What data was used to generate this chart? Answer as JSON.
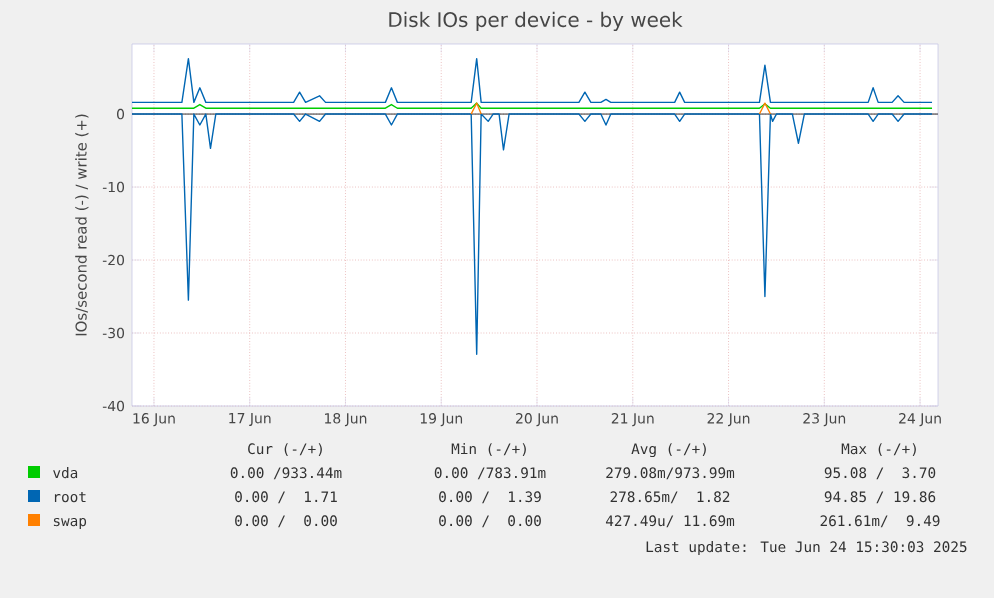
{
  "chart_data": {
    "type": "line",
    "title": "Disk IOs per device - by week",
    "ylabel": "IOs/second read (-) / write (+)",
    "xlim": [
      "2025-06-15T18:30",
      "2025-06-24T04:30"
    ],
    "ylim": [
      -40,
      9.6
    ],
    "xticks": [
      {
        "value": "2025-06-16",
        "label": "16 Jun"
      },
      {
        "value": "2025-06-17",
        "label": "17 Jun"
      },
      {
        "value": "2025-06-18",
        "label": "18 Jun"
      },
      {
        "value": "2025-06-19",
        "label": "19 Jun"
      },
      {
        "value": "2025-06-20",
        "label": "20 Jun"
      },
      {
        "value": "2025-06-21",
        "label": "21 Jun"
      },
      {
        "value": "2025-06-22",
        "label": "22 Jun"
      },
      {
        "value": "2025-06-23",
        "label": "23 Jun"
      },
      {
        "value": "2025-06-24",
        "label": "24 Jun"
      }
    ],
    "yticks": [
      -40,
      -30,
      -20,
      -10,
      0
    ],
    "grid": true,
    "legend": "bottom",
    "line_style": "solid",
    "marker": "none",
    "ref_lines": [
      {
        "axis": "y",
        "value": 0,
        "color": "#000000"
      }
    ],
    "series": [
      {
        "name": "vda",
        "color": "#00cc00",
        "x": [
          "2025-06-15T18:30",
          "2025-06-16T10:00",
          "2025-06-16T11:30",
          "2025-06-16T13:00",
          "2025-06-18T10:00",
          "2025-06-18T11:31",
          "2025-06-18T13:00",
          "2025-06-19T07:30",
          "2025-06-19T08:53",
          "2025-06-19T10:00",
          "2025-06-22T07:45",
          "2025-06-22T09:07",
          "2025-06-22T10:30",
          "2025-06-24T03:00"
        ],
        "values": [
          0.8,
          0.8,
          1.3,
          0.8,
          0.8,
          1.3,
          0.8,
          0.8,
          1.5,
          0.8,
          0.8,
          1.4,
          0.8,
          0.8
        ]
      },
      {
        "name": "root",
        "color": "#0066b3",
        "x": [
          "2025-06-15T18:30",
          "2025-06-16T07:00",
          "2025-06-16T08:38",
          "2025-06-16T10:00",
          "2025-06-16T11:30",
          "2025-06-16T13:00",
          "2025-06-17T11:00",
          "2025-06-17T12:30",
          "2025-06-17T14:00",
          "2025-06-17T17:30",
          "2025-06-17T19:00",
          "2025-06-18T10:00",
          "2025-06-18T11:31",
          "2025-06-18T13:00",
          "2025-06-19T07:30",
          "2025-06-19T08:53",
          "2025-06-19T10:00",
          "2025-06-20T10:30",
          "2025-06-20T12:00",
          "2025-06-20T13:30",
          "2025-06-20T16:00",
          "2025-06-20T17:17",
          "2025-06-20T18:30",
          "2025-06-21T10:30",
          "2025-06-21T11:45",
          "2025-06-21T13:00",
          "2025-06-22T07:45",
          "2025-06-22T09:07",
          "2025-06-22T10:30",
          "2025-06-23T11:00",
          "2025-06-23T12:14",
          "2025-06-23T13:30",
          "2025-06-23T17:00",
          "2025-06-23T18:29",
          "2025-06-23T20:00",
          "2025-06-24T03:00"
        ],
        "values": [
          1.6,
          1.6,
          7.6,
          1.6,
          3.6,
          1.6,
          1.6,
          3.0,
          1.6,
          2.5,
          1.6,
          1.6,
          3.6,
          1.6,
          1.6,
          7.6,
          1.6,
          1.6,
          3.0,
          1.6,
          1.6,
          2.0,
          1.6,
          1.6,
          3.0,
          1.6,
          1.6,
          6.7,
          1.6,
          1.6,
          3.6,
          1.6,
          1.6,
          2.5,
          1.6,
          1.6
        ]
      },
      {
        "color": "#0066b3",
        "x": [
          "2025-06-15T18:30",
          "2025-06-16T07:00",
          "2025-06-16T08:38",
          "2025-06-16T10:00",
          "2025-06-16T11:30",
          "2025-06-16T13:00",
          "2025-06-16T14:10",
          "2025-06-16T15:30",
          "2025-06-17T11:00",
          "2025-06-17T12:30",
          "2025-06-17T14:00",
          "2025-06-17T17:30",
          "2025-06-17T19:00",
          "2025-06-18T10:00",
          "2025-06-18T11:31",
          "2025-06-18T13:00",
          "2025-06-19T07:30",
          "2025-06-19T08:53",
          "2025-06-19T10:00",
          "2025-06-19T11:46",
          "2025-06-19T13:00",
          "2025-06-19T14:30",
          "2025-06-19T15:36",
          "2025-06-19T17:00",
          "2025-06-20T10:30",
          "2025-06-20T12:00",
          "2025-06-20T13:30",
          "2025-06-20T16:00",
          "2025-06-20T17:17",
          "2025-06-20T18:30",
          "2025-06-21T10:30",
          "2025-06-21T11:45",
          "2025-06-21T13:00",
          "2025-06-22T07:45",
          "2025-06-22T09:07",
          "2025-06-22T10:30",
          "2025-06-22T11:02",
          "2025-06-22T12:00",
          "2025-06-22T16:00",
          "2025-06-22T17:31",
          "2025-06-22T19:00",
          "2025-06-23T11:00",
          "2025-06-23T12:14",
          "2025-06-23T13:30",
          "2025-06-23T17:00",
          "2025-06-23T18:29",
          "2025-06-23T20:00",
          "2025-06-24T03:00"
        ],
        "values": [
          0,
          0,
          -25.5,
          0,
          -1.5,
          0,
          -4.7,
          0,
          0,
          -1,
          0,
          -1,
          0,
          0,
          -1.5,
          0,
          0,
          -32.9,
          0,
          -1,
          0,
          0,
          -4.9,
          0,
          0,
          -1,
          0,
          0,
          -1.5,
          0,
          0,
          -1,
          0,
          0,
          -25,
          0,
          -1,
          0,
          0,
          -4.0,
          0,
          0,
          -1,
          0,
          0,
          -1,
          0,
          0
        ]
      },
      {
        "name": "swap",
        "color": "#ff8000",
        "x": [
          "2025-06-19T07:30",
          "2025-06-19T08:53",
          "2025-06-19T10:00",
          "2025-06-20T12:00",
          "2025-06-22T07:45",
          "2025-06-22T09:07",
          "2025-06-22T10:30"
        ],
        "values": [
          0,
          1.5,
          0,
          null,
          0,
          1.5,
          0
        ]
      }
    ],
    "annotations": [
      "Cur (-/+)",
      "Min (-/+)",
      "Avg (-/+)",
      "Max (-/+)",
      "0.00 /933.44m",
      "0.00 /783.91m",
      "279.08m/973.99m",
      "95.08 /  3.70",
      "0.00 /  1.71",
      "0.00 /  1.39",
      "278.65m/  1.82",
      "94.85 / 19.86",
      "0.00 /  0.00",
      "0.00 /  0.00",
      "427.49u/ 11.69m",
      "261.61m/  9.49",
      "Last update: Tue Jun 24 15:30:03 2025"
    ]
  }
}
